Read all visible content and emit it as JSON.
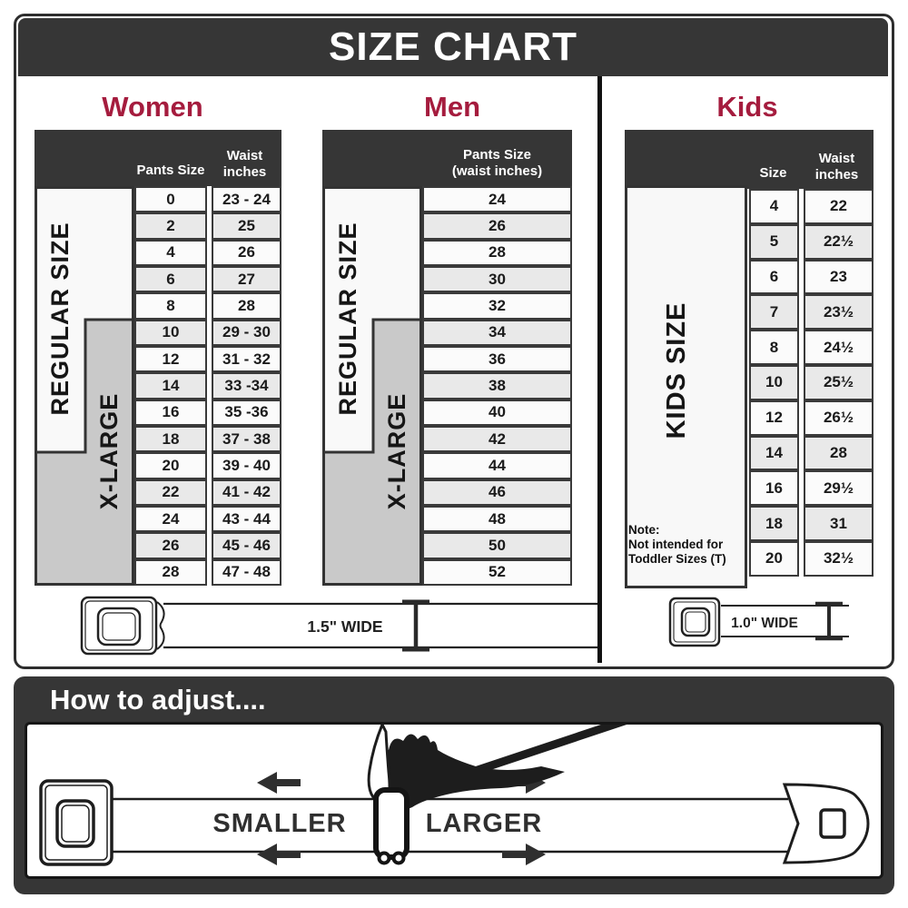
{
  "title": "SIZE CHART",
  "colors": {
    "accent": "#a51c3e",
    "dark_bar": "#363636",
    "band_gray": "#c9c9c9",
    "row_alt": "#e9e9e9"
  },
  "women": {
    "heading": "Women",
    "pants_header": "Pants Size",
    "waist_header": "Waist\ninches",
    "regular_label": "REGULAR SIZE",
    "xlarge_label": "X-LARGE",
    "rows": [
      [
        "0",
        "23 - 24"
      ],
      [
        "2",
        "25"
      ],
      [
        "4",
        "26"
      ],
      [
        "6",
        "27"
      ],
      [
        "8",
        "28"
      ],
      [
        "10",
        "29 - 30"
      ],
      [
        "12",
        "31 - 32"
      ],
      [
        "14",
        "33 -34"
      ],
      [
        "16",
        "35 -36"
      ],
      [
        "18",
        "37 - 38"
      ],
      [
        "20",
        "39 - 40"
      ],
      [
        "22",
        "41 - 42"
      ],
      [
        "24",
        "43 - 44"
      ],
      [
        "26",
        "45 - 46"
      ],
      [
        "28",
        "47 - 48"
      ]
    ]
  },
  "men": {
    "heading": "Men",
    "col_header": "Pants Size\n(waist inches)",
    "regular_label": "REGULAR SIZE",
    "xlarge_label": "X-LARGE",
    "rows": [
      "24",
      "26",
      "28",
      "30",
      "32",
      "34",
      "36",
      "38",
      "40",
      "42",
      "44",
      "46",
      "48",
      "50",
      "52"
    ]
  },
  "kids": {
    "heading": "Kids",
    "size_header": "Size",
    "waist_header": "Waist\ninches",
    "band_label": "KIDS SIZE",
    "note": "Note:\nNot intended for\nToddler Sizes (T)",
    "rows": [
      [
        "4",
        "22"
      ],
      [
        "5",
        "22½"
      ],
      [
        "6",
        "23"
      ],
      [
        "7",
        "23½"
      ],
      [
        "8",
        "24½"
      ],
      [
        "10",
        "25½"
      ],
      [
        "12",
        "26½"
      ],
      [
        "14",
        "28"
      ],
      [
        "16",
        "29½"
      ],
      [
        "18",
        "31"
      ],
      [
        "20",
        "32½"
      ]
    ]
  },
  "belts": {
    "adult_width_label": "1.5\" WIDE",
    "kids_width_label": "1.0\" WIDE"
  },
  "adjust": {
    "heading": "How to adjust....",
    "smaller": "SMALLER",
    "larger": "LARGER"
  }
}
